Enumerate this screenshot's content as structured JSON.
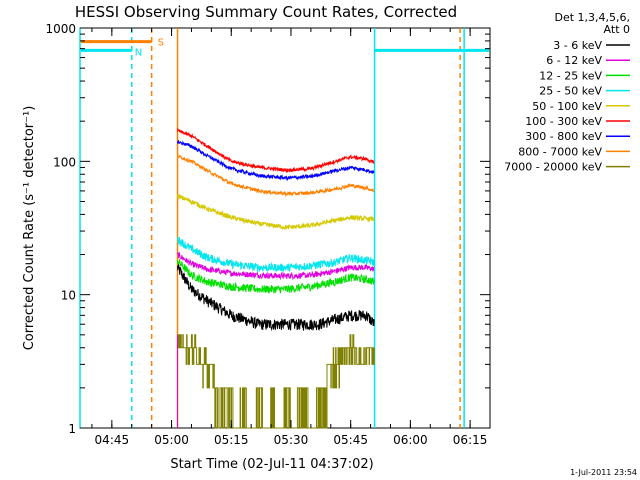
{
  "chart_data": {
    "type": "line",
    "title": "HESSI Observing Summary Count Rates, Corrected",
    "xlabel": "Start Time (02-Jul-11 04:37:02)",
    "ylabel": "Corrected Count Rate (s⁻¹ detector⁻¹)",
    "y_scale": "log",
    "xlim_min": [
      0,
      103
    ],
    "ylim": [
      1,
      1000
    ],
    "x_ticks": [
      {
        "min": 8,
        "label": "04:45"
      },
      {
        "min": 23,
        "label": "05:00"
      },
      {
        "min": 38,
        "label": "05:15"
      },
      {
        "min": 53,
        "label": "05:30"
      },
      {
        "min": 68,
        "label": "05:45"
      },
      {
        "min": 83,
        "label": "06:00"
      },
      {
        "min": 98,
        "label": "06:15"
      }
    ],
    "y_ticks": [
      {
        "value": 1,
        "label": "1"
      },
      {
        "value": 10,
        "label": "10"
      },
      {
        "value": 100,
        "label": "100"
      },
      {
        "value": 1000,
        "label": "1000"
      }
    ],
    "legend": {
      "header": [
        "Det 1,3,4,5,6,",
        "Att 0"
      ],
      "placement": "right"
    },
    "annotations": {
      "N_label": "N",
      "S_label": "S",
      "timestamp": "1-Jul-2011 23:54"
    },
    "vertical_markers": [
      {
        "min": 0,
        "color": "#00e5ee",
        "style": "solid"
      },
      {
        "min": 13,
        "color": "#00e5ee",
        "style": "dashed"
      },
      {
        "min": 18,
        "color": "#ff8000",
        "style": "dashed"
      },
      {
        "min": 24.5,
        "color": "#ff8000",
        "style": "solid"
      },
      {
        "min": 74,
        "color": "#00e5ee",
        "style": "solid"
      },
      {
        "min": 95.5,
        "color": "#ff8000",
        "style": "dashed"
      },
      {
        "min": 96.5,
        "color": "#00e5ee",
        "style": "solid"
      }
    ],
    "orbit_bars": [
      {
        "name": "N",
        "color": "#00e5ee",
        "x_from": 0,
        "x_to": 13,
        "y": 680
      },
      {
        "name": "S",
        "color": "#ff8000",
        "x_from": 0,
        "x_to": 18,
        "y": 790
      },
      {
        "name": "N2",
        "color": "#00e5ee",
        "x_from": 74,
        "x_to": 103,
        "y": 680
      }
    ],
    "data_window": [
      24.5,
      74
    ],
    "series": [
      {
        "name": "3 - 6 keV",
        "color": "#000000",
        "noise": 0.1,
        "points": [
          [
            24.5,
            16
          ],
          [
            28,
            11
          ],
          [
            32,
            9
          ],
          [
            38,
            7
          ],
          [
            45,
            6
          ],
          [
            50,
            6
          ],
          [
            55,
            6
          ],
          [
            60,
            6
          ],
          [
            64,
            6.5
          ],
          [
            68,
            7
          ],
          [
            72,
            7
          ],
          [
            74,
            6
          ]
        ]
      },
      {
        "name": "6 - 12 keV",
        "color": "#e000e0",
        "noise": 0.05,
        "points": [
          [
            24.5,
            20
          ],
          [
            28,
            17
          ],
          [
            32,
            15.5
          ],
          [
            38,
            14.5
          ],
          [
            45,
            14
          ],
          [
            52,
            13.8
          ],
          [
            58,
            14
          ],
          [
            64,
            15
          ],
          [
            68,
            16
          ],
          [
            72,
            16
          ],
          [
            74,
            15.5
          ]
        ]
      },
      {
        "name": "12 - 25 keV",
        "color": "#00e000",
        "noise": 0.07,
        "points": [
          [
            24.5,
            18
          ],
          [
            28,
            14
          ],
          [
            32,
            12.5
          ],
          [
            38,
            11.5
          ],
          [
            45,
            11
          ],
          [
            52,
            11
          ],
          [
            58,
            11.5
          ],
          [
            64,
            12.5
          ],
          [
            68,
            13.5
          ],
          [
            72,
            13
          ],
          [
            74,
            12.5
          ]
        ]
      },
      {
        "name": "25 - 50 keV",
        "color": "#00e5ee",
        "noise": 0.07,
        "points": [
          [
            24.5,
            26
          ],
          [
            28,
            22
          ],
          [
            32,
            19
          ],
          [
            38,
            17
          ],
          [
            45,
            16
          ],
          [
            52,
            16
          ],
          [
            58,
            16.5
          ],
          [
            64,
            17.5
          ],
          [
            68,
            19
          ],
          [
            72,
            18
          ],
          [
            74,
            17.5
          ]
        ]
      },
      {
        "name": "50 - 100 keV",
        "color": "#d4c800",
        "noise": 0.04,
        "points": [
          [
            24.5,
            55
          ],
          [
            28,
            50
          ],
          [
            32,
            44
          ],
          [
            38,
            38
          ],
          [
            45,
            34
          ],
          [
            52,
            32
          ],
          [
            58,
            33
          ],
          [
            64,
            36
          ],
          [
            68,
            38
          ],
          [
            72,
            37
          ],
          [
            74,
            37
          ]
        ]
      },
      {
        "name": "100 - 300 keV",
        "color": "#ff0000",
        "noise": 0.03,
        "points": [
          [
            24.5,
            170
          ],
          [
            28,
            155
          ],
          [
            32,
            130
          ],
          [
            38,
            100
          ],
          [
            45,
            90
          ],
          [
            52,
            86
          ],
          [
            58,
            88
          ],
          [
            64,
            100
          ],
          [
            68,
            108
          ],
          [
            72,
            104
          ],
          [
            74,
            97
          ]
        ]
      },
      {
        "name": "300 - 800 keV",
        "color": "#0000ff",
        "noise": 0.03,
        "points": [
          [
            24.5,
            140
          ],
          [
            28,
            130
          ],
          [
            32,
            110
          ],
          [
            38,
            88
          ],
          [
            45,
            78
          ],
          [
            52,
            75
          ],
          [
            58,
            77
          ],
          [
            64,
            85
          ],
          [
            68,
            90
          ],
          [
            72,
            86
          ],
          [
            74,
            82
          ]
        ]
      },
      {
        "name": "800 - 7000 keV",
        "color": "#ff8000",
        "noise": 0.03,
        "points": [
          [
            24.5,
            110
          ],
          [
            28,
            100
          ],
          [
            32,
            85
          ],
          [
            38,
            68
          ],
          [
            45,
            60
          ],
          [
            52,
            57
          ],
          [
            58,
            58
          ],
          [
            64,
            62
          ],
          [
            68,
            66
          ],
          [
            72,
            63
          ],
          [
            74,
            60
          ]
        ]
      },
      {
        "name": "7000 - 20000 keV",
        "color": "#808000",
        "noise": 0,
        "step": true,
        "points": [
          [
            24.5,
            5
          ],
          [
            26,
            4
          ],
          [
            29,
            4
          ],
          [
            30,
            3
          ],
          [
            33,
            3
          ],
          [
            34,
            2.4
          ],
          [
            37,
            2.2
          ],
          [
            38,
            2
          ],
          [
            39,
            1
          ],
          [
            41,
            2
          ],
          [
            43,
            1
          ],
          [
            45,
            2
          ],
          [
            47,
            1
          ],
          [
            48,
            2
          ],
          [
            50,
            1
          ],
          [
            52,
            2
          ],
          [
            54,
            1
          ],
          [
            55,
            2
          ],
          [
            57,
            2
          ],
          [
            58,
            1
          ],
          [
            60,
            2
          ],
          [
            63,
            3
          ],
          [
            65,
            3
          ],
          [
            67,
            4
          ],
          [
            69,
            4
          ],
          [
            71,
            3
          ],
          [
            73,
            4
          ],
          [
            74,
            3
          ]
        ]
      }
    ]
  }
}
